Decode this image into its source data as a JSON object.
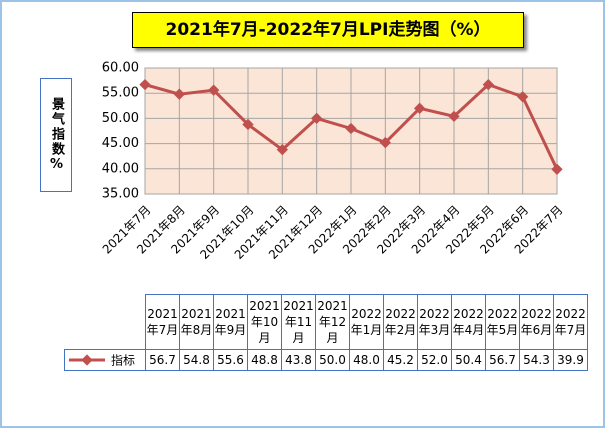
{
  "chart_data": {
    "type": "line",
    "title": "2021年7月-2022年7月LPI走势图（%）",
    "y_label": "景气指数%",
    "categories": [
      "2021年7月",
      "2021年8月",
      "2021年9月",
      "2021年10月",
      "2021年11月",
      "2021年12月",
      "2022年1月",
      "2022年2月",
      "2022年3月",
      "2022年4月",
      "2022年5月",
      "2022年6月",
      "2022年7月"
    ],
    "series": [
      {
        "name": "指标",
        "color": "#c0504d",
        "values": [
          56.7,
          54.8,
          55.6,
          48.8,
          43.8,
          50.0,
          48.0,
          45.2,
          52.0,
          50.4,
          56.7,
          54.3,
          39.9
        ],
        "value_labels": [
          "56.7",
          "54.8",
          "55.6",
          "48.8",
          "43.8",
          "50.0",
          "48.0",
          "45.2",
          "52.0",
          "50.4",
          "56.7",
          "54.3",
          "39.9"
        ]
      }
    ],
    "ylim": [
      35,
      60
    ],
    "yticks": [
      {
        "value": 35,
        "label": "35.00"
      },
      {
        "value": 40,
        "label": "40.00"
      },
      {
        "value": 45,
        "label": "45.00"
      },
      {
        "value": 50,
        "label": "50.00"
      },
      {
        "value": 55,
        "label": "55.00"
      },
      {
        "value": 60,
        "label": "60.00"
      }
    ],
    "grid": true
  }
}
